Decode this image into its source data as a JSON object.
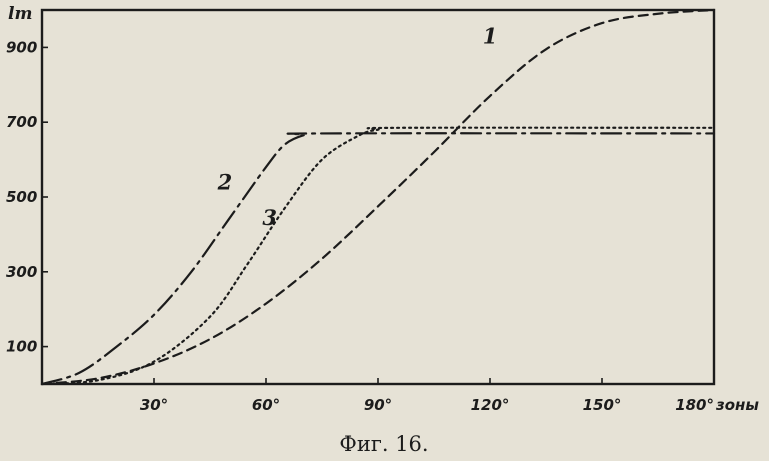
{
  "chart_data": {
    "type": "line",
    "caption": "Фиг. 16.",
    "ylabel": "lm",
    "xlabel": "зоны",
    "xlim": [
      0,
      180
    ],
    "ylim": [
      0,
      1000
    ],
    "x_ticks": [
      {
        "value": 30,
        "label": "30°"
      },
      {
        "value": 60,
        "label": "60°"
      },
      {
        "value": 90,
        "label": "90°"
      },
      {
        "value": 120,
        "label": "120°"
      },
      {
        "value": 150,
        "label": "150°"
      },
      {
        "value": 180,
        "label": "180°"
      }
    ],
    "y_ticks": [
      {
        "value": 100,
        "label": "100"
      },
      {
        "value": 300,
        "label": "300"
      },
      {
        "value": 500,
        "label": "500"
      },
      {
        "value": 700,
        "label": "700"
      },
      {
        "value": 900,
        "label": "900"
      }
    ],
    "grid": false,
    "series": [
      {
        "label": "1",
        "dash": "dashed",
        "x": [
          0,
          15,
          30,
          45,
          60,
          75,
          90,
          105,
          120,
          135,
          150,
          165,
          180
        ],
        "y": [
          0,
          15,
          55,
          120,
          215,
          335,
          475,
          620,
          770,
          895,
          965,
          990,
          1000
        ]
      },
      {
        "label": "2",
        "dash": "long-dash-dot",
        "x": [
          0,
          10,
          20,
          30,
          40,
          50,
          60,
          65,
          70,
          75,
          180
        ],
        "y": [
          0,
          30,
          100,
          185,
          300,
          440,
          580,
          640,
          665,
          670,
          670
        ]
      },
      {
        "label": "3",
        "dash": "dotted",
        "x": [
          0,
          15,
          30,
          45,
          55,
          65,
          75,
          85,
          90,
          95,
          180
        ],
        "y": [
          0,
          10,
          60,
          180,
          320,
          470,
          600,
          665,
          680,
          685,
          685
        ]
      }
    ],
    "curve_labels": [
      {
        "text": "1",
        "x": 120,
        "y": 910
      },
      {
        "text": "2",
        "x": 49,
        "y": 520
      },
      {
        "text": "3",
        "x": 61,
        "y": 425
      }
    ]
  }
}
